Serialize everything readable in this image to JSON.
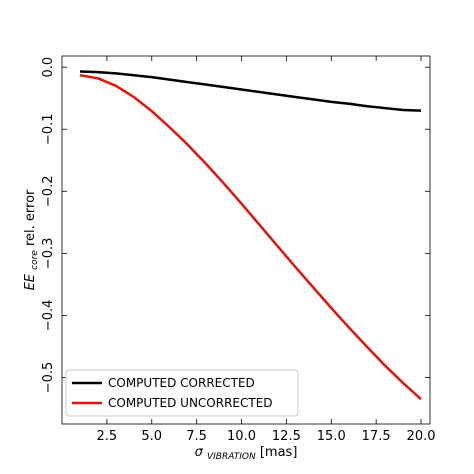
{
  "chart_data": {
    "type": "line",
    "xlabel": {
      "symbol": "σ",
      "subscript": "VIBRATION",
      "suffix": " [mas]"
    },
    "ylabel": {
      "symbol": "EE",
      "subscript": "core",
      "suffix": " rel. error"
    },
    "xlim": [
      0.0,
      20.5
    ],
    "ylim": [
      -0.575,
      0.018
    ],
    "x_ticks": [
      2.5,
      5.0,
      7.5,
      10.0,
      12.5,
      15.0,
      17.5,
      20.0
    ],
    "x_tick_labels": [
      "2.5",
      "5.0",
      "7.5",
      "10.0",
      "12.5",
      "15.0",
      "17.5",
      "20.0"
    ],
    "y_ticks": [
      0.0,
      -0.1,
      -0.2,
      -0.3,
      -0.4,
      -0.5
    ],
    "y_tick_labels": [
      "0.0",
      "−0.1",
      "−0.2",
      "−0.3",
      "−0.4",
      "−0.5"
    ],
    "grid": false,
    "legend_position": "lower-left",
    "series": [
      {
        "name": "COMPUTED CORRECTED",
        "color": "#000000",
        "x": [
          1.0,
          2.0,
          3.0,
          4.0,
          5.0,
          6.0,
          7.0,
          8.0,
          9.0,
          10.0,
          11.0,
          12.0,
          13.0,
          14.0,
          15.0,
          16.0,
          17.0,
          18.0,
          19.0,
          20.0
        ],
        "y": [
          -0.007,
          -0.008,
          -0.01,
          -0.013,
          -0.016,
          -0.02,
          -0.024,
          -0.028,
          -0.032,
          -0.036,
          -0.04,
          -0.044,
          -0.048,
          -0.052,
          -0.056,
          -0.059,
          -0.063,
          -0.066,
          -0.069,
          -0.07
        ]
      },
      {
        "name": "COMPUTED UNCORRECTED",
        "color": "#e8120c",
        "x": [
          1.0,
          2.0,
          3.0,
          4.0,
          5.0,
          6.0,
          7.0,
          8.0,
          9.0,
          10.0,
          11.0,
          12.0,
          13.0,
          14.0,
          15.0,
          16.0,
          17.0,
          18.0,
          19.0,
          20.0
        ],
        "y": [
          -0.013,
          -0.018,
          -0.03,
          -0.048,
          -0.071,
          -0.097,
          -0.125,
          -0.155,
          -0.187,
          -0.22,
          -0.254,
          -0.288,
          -0.322,
          -0.355,
          -0.388,
          -0.42,
          -0.451,
          -0.481,
          -0.509,
          -0.535
        ]
      }
    ]
  }
}
